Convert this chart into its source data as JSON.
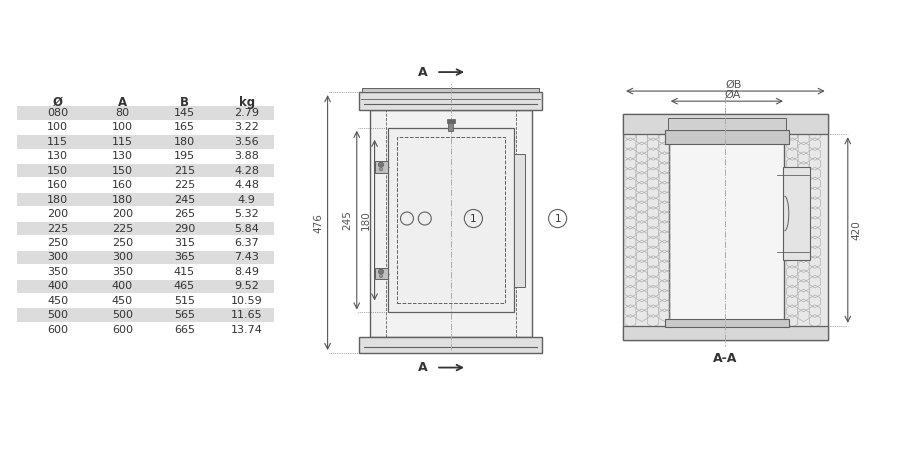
{
  "table_headers": [
    "Ø",
    "A",
    "B",
    "kg"
  ],
  "table_rows": [
    [
      "080",
      "80",
      "145",
      "2.79"
    ],
    [
      "100",
      "100",
      "165",
      "3.22"
    ],
    [
      "115",
      "115",
      "180",
      "3.56"
    ],
    [
      "130",
      "130",
      "195",
      "3.88"
    ],
    [
      "150",
      "150",
      "215",
      "4.28"
    ],
    [
      "160",
      "160",
      "225",
      "4.48"
    ],
    [
      "180",
      "180",
      "245",
      "4.9"
    ],
    [
      "200",
      "200",
      "265",
      "5.32"
    ],
    [
      "225",
      "225",
      "290",
      "5.84"
    ],
    [
      "250",
      "250",
      "315",
      "6.37"
    ],
    [
      "300",
      "300",
      "365",
      "7.43"
    ],
    [
      "350",
      "350",
      "415",
      "8.49"
    ],
    [
      "400",
      "400",
      "465",
      "9.52"
    ],
    [
      "450",
      "450",
      "515",
      "10.59"
    ],
    [
      "500",
      "500",
      "565",
      "11.65"
    ],
    [
      "600",
      "600",
      "665",
      "13.74"
    ]
  ],
  "shaded_rows": [
    0,
    2,
    4,
    6,
    8,
    10,
    12,
    14
  ],
  "bg_color": "#ffffff",
  "row_shade": "#dcdcdc",
  "line_color": "#606060",
  "dim_color": "#555555",
  "text_color": "#333333"
}
